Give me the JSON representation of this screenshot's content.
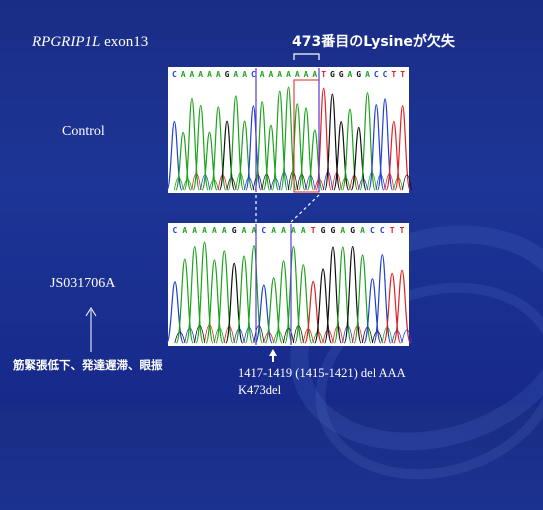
{
  "slide": {
    "title_gene": "RPGRIP1L",
    "title_exon": "exon13",
    "annotation": "473番目のLysineが欠失",
    "control_label": "Control",
    "patient_label": "JS031706A",
    "symptoms": "筋緊張低下、発達遅滞、眼振",
    "mutation_line1": "1417-1419 (1415-1421) del AAA",
    "mutation_line2": "K473del"
  },
  "chromatograms": {
    "control_sequence": "CAAAAAGAACAAAAAAATGGAGACCTT",
    "patient_sequence": "CAAAAAGAACAAAATGGAGACCTT",
    "base_colors": {
      "A": "#1ca31c",
      "C": "#2040d0",
      "G": "#111111",
      "T": "#e02020"
    },
    "highlight_color": "#e02020",
    "marker_color": "#5a3ad6"
  }
}
